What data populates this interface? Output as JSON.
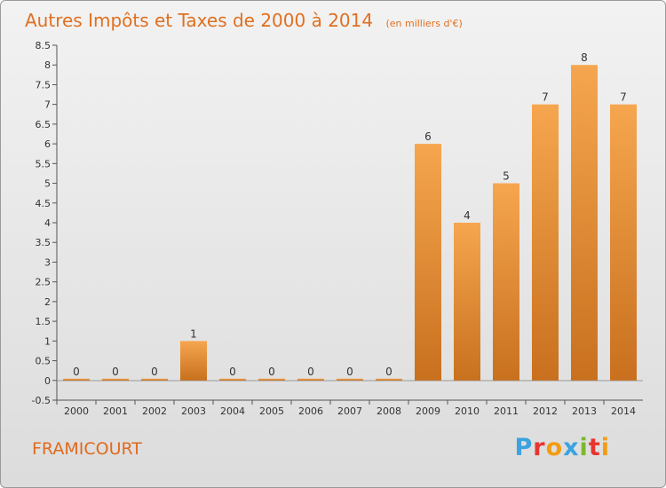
{
  "commune": "FRAMICOURT",
  "brand": "Proxiti",
  "colors": {
    "bar_light": "#f6a64f",
    "bar_dark": "#c8701e",
    "title": "#e07020",
    "commune": "#e06a1e"
  },
  "chart_data": {
    "type": "bar",
    "title": "Autres Impôts et Taxes de 2000 à 2014",
    "subtitle": "(en milliers d'€)",
    "categories": [
      "2000",
      "2001",
      "2002",
      "2003",
      "2004",
      "2005",
      "2006",
      "2007",
      "2008",
      "2009",
      "2010",
      "2011",
      "2012",
      "2013",
      "2014"
    ],
    "values": [
      0,
      0,
      0,
      1,
      0,
      0,
      0,
      0,
      0,
      6,
      4,
      5,
      7,
      8,
      7
    ],
    "data_labels": [
      "0",
      "0",
      "0",
      "1",
      "0",
      "0",
      "0",
      "0",
      "0",
      "6",
      "4",
      "5",
      "7",
      "8",
      "7"
    ],
    "y_ticks": [
      "-0.5",
      "0",
      "0.5",
      "1",
      "1.5",
      "2",
      "2.5",
      "3",
      "3.5",
      "4",
      "4.5",
      "5",
      "5.5",
      "6",
      "6.5",
      "7",
      "7.5",
      "8",
      "8.5"
    ],
    "ylim": [
      -0.5,
      8.5
    ],
    "grid": false
  }
}
